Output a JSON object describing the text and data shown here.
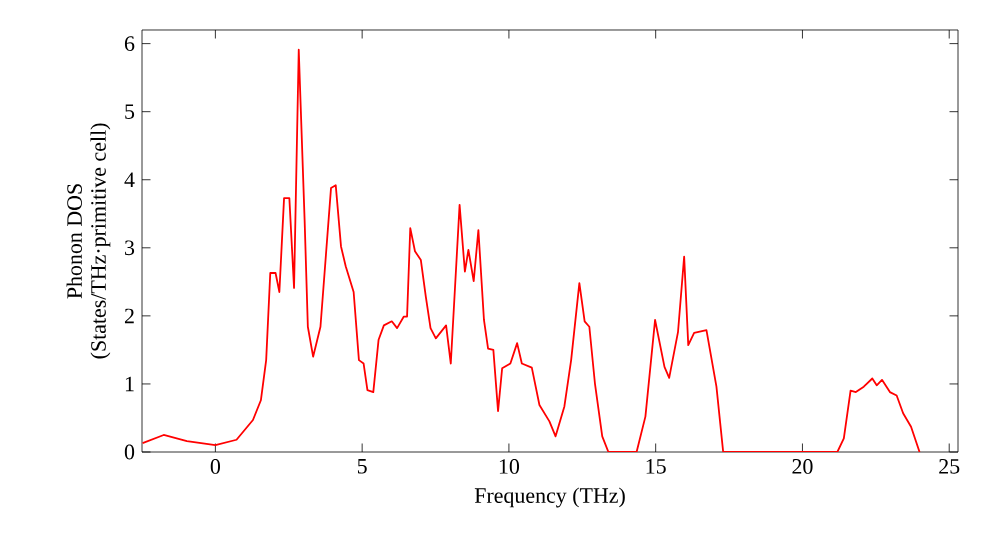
{
  "chart_data": {
    "type": "line",
    "xlabel": "Frequency (THz)",
    "ylabel": "Phonon DOS\n(States/THz·primitive cell)",
    "xlim": [
      -2.5,
      25.3
    ],
    "ylim": [
      0,
      6.2
    ],
    "xticks": [
      0,
      5,
      10,
      15,
      20,
      25
    ],
    "yticks": [
      0,
      1,
      2,
      3,
      4,
      5,
      6
    ],
    "grid": false,
    "marker": "none",
    "line_style": "solid",
    "series": [
      {
        "color": "#ff0000",
        "x": [
          -2.48,
          -1.76,
          -0.97,
          0,
          0.72,
          1.28,
          1.55,
          1.73,
          1.87,
          2.05,
          2.18,
          2.34,
          2.52,
          2.68,
          2.84,
          3.04,
          3.15,
          3.33,
          3.58,
          3.94,
          4.1,
          4.28,
          4.44,
          4.71,
          4.89,
          5.05,
          5.18,
          5.38,
          5.56,
          5.74,
          6.01,
          6.19,
          6.42,
          6.53,
          6.64,
          6.8,
          7.0,
          7.17,
          7.33,
          7.51,
          7.86,
          8.02,
          8.32,
          8.5,
          8.62,
          8.8,
          8.96,
          9.15,
          9.29,
          9.47,
          9.63,
          9.77,
          10.05,
          10.28,
          10.44,
          10.78,
          11.04,
          11.38,
          11.59,
          11.89,
          12.12,
          12.4,
          12.58,
          12.74,
          12.93,
          13.18,
          13.39,
          14.35,
          14.65,
          14.98,
          15.3,
          15.46,
          15.76,
          15.97,
          16.11,
          16.31,
          16.73,
          17.07,
          17.3,
          21.19,
          21.41,
          21.64,
          21.82,
          22.09,
          22.38,
          22.53,
          22.71,
          22.98,
          23.21,
          23.43,
          23.7,
          23.99
        ],
        "values": [
          0.13,
          0.25,
          0.16,
          0.1,
          0.18,
          0.47,
          0.76,
          1.35,
          2.63,
          2.63,
          2.35,
          3.73,
          3.73,
          2.41,
          5.91,
          3.41,
          1.84,
          1.4,
          1.84,
          3.88,
          3.92,
          3.02,
          2.73,
          2.35,
          1.35,
          1.3,
          0.91,
          0.88,
          1.65,
          1.86,
          1.92,
          1.82,
          1.99,
          1.99,
          3.29,
          2.95,
          2.82,
          2.28,
          1.82,
          1.67,
          1.86,
          1.3,
          3.63,
          2.65,
          2.97,
          2.51,
          3.26,
          1.94,
          1.52,
          1.5,
          0.6,
          1.23,
          1.3,
          1.6,
          1.3,
          1.24,
          0.69,
          0.45,
          0.23,
          0.67,
          1.35,
          2.48,
          1.92,
          1.84,
          1.01,
          0.23,
          0,
          0,
          0.52,
          1.94,
          1.25,
          1.09,
          1.76,
          2.87,
          1.57,
          1.75,
          1.79,
          0.96,
          0,
          0,
          0.2,
          0.9,
          0.88,
          0.96,
          1.08,
          0.98,
          1.06,
          0.88,
          0.83,
          0.57,
          0.37,
          0
        ]
      }
    ]
  }
}
